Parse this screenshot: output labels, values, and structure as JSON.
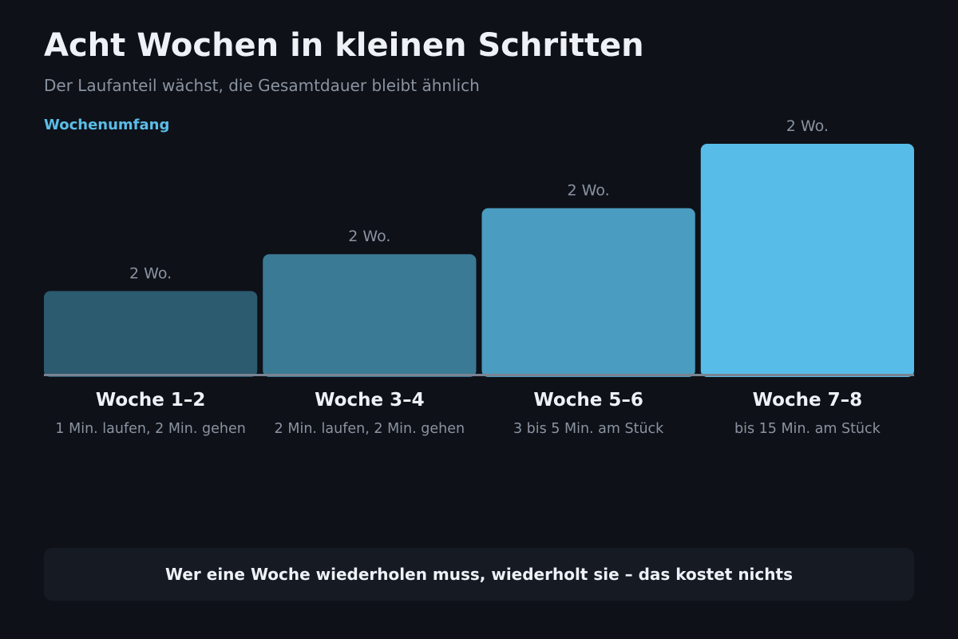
{
  "title": "Acht Wochen in kleinen Schritten",
  "subtitle": "Der Laufanteil wächst, die Gesamtdauer bleibt ähnlich",
  "footer": "Wer eine Woche wiederholen muss, wiederholt sie – das kostet nichts",
  "colors": {
    "background": "#0e1118",
    "axis": "#7a8392",
    "ylabel": "#5bbde8",
    "bars": [
      "#2c5a6e",
      "#3a7a95",
      "#4a9cc0",
      "#58bce8"
    ]
  },
  "chart_data": {
    "type": "bar",
    "ylabel": "Wochenumfang",
    "categories": [
      "Woche 1–2",
      "Woche 3–4",
      "Woche 5–6",
      "Woche 7–8"
    ],
    "descriptions": [
      "1 Min. laufen, 2 Min. gehen",
      "2 Min. laufen, 2 Min. gehen",
      "3 bis 5 Min. am Stück",
      "bis 15 Min. am Stück"
    ],
    "data_labels": [
      "2 Wo.",
      "2 Wo.",
      "2 Wo.",
      "2 Wo."
    ],
    "values": [
      36,
      52,
      72,
      100
    ],
    "ylim": [
      0,
      100
    ],
    "grid": false,
    "legend": "none"
  }
}
